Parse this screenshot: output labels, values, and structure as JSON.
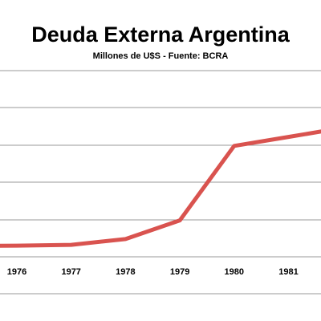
{
  "chart_data": {
    "type": "line",
    "title": "Deuda Externa Argentina",
    "subtitle": "Millones de U$S - Fuente: BCRA",
    "xlabel": "",
    "ylabel": "",
    "categories": [
      "1976",
      "1977",
      "1978",
      "1979",
      "1980",
      "1981"
    ],
    "series": [
      {
        "values": [
          7.9,
          8.1,
          9.7,
          14.9,
          35.5,
          38.0
        ],
        "color": "#d9534f"
      }
    ],
    "grid": true,
    "legend": "none"
  }
}
